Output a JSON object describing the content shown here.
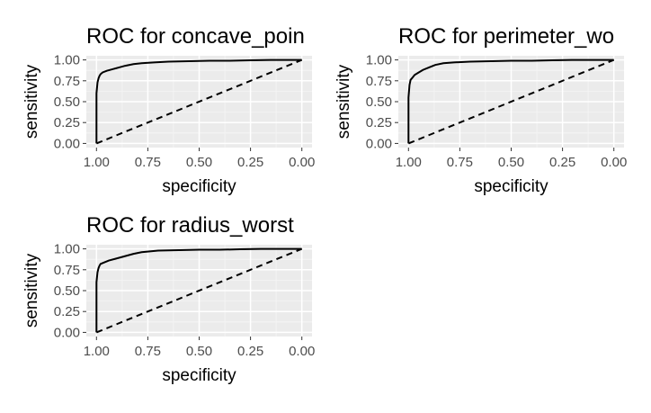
{
  "chart_data": [
    {
      "type": "line",
      "title": "ROC for concave_poin",
      "xlabel": "specificity",
      "ylabel": "sensitivity",
      "xlim": [
        1.0,
        0.0
      ],
      "x_reversed": true,
      "ylim": [
        0.0,
        1.0
      ],
      "x_ticks": [
        "1.00",
        "0.75",
        "0.50",
        "0.25",
        "0.00"
      ],
      "y_ticks": [
        "0.00",
        "0.25",
        "0.50",
        "0.75",
        "1.00"
      ],
      "grid": true,
      "legend": "none",
      "series": [
        {
          "style": "solid",
          "x": [
            1.0,
            1.0,
            0.995,
            0.99,
            0.985,
            0.98,
            0.97,
            0.95,
            0.92,
            0.89,
            0.86,
            0.82,
            0.78,
            0.72,
            0.65,
            0.55,
            0.45,
            0.35,
            0.25,
            0.15,
            0.05,
            0.0
          ],
          "y": [
            0.0,
            0.6,
            0.73,
            0.78,
            0.81,
            0.83,
            0.85,
            0.87,
            0.89,
            0.91,
            0.93,
            0.95,
            0.96,
            0.97,
            0.98,
            0.985,
            0.99,
            0.99,
            0.995,
            1.0,
            1.0,
            1.0
          ]
        },
        {
          "style": "dashed",
          "x": [
            1.0,
            0.0
          ],
          "y": [
            0.0,
            1.0
          ]
        }
      ]
    },
    {
      "type": "line",
      "title": "ROC for perimeter_wo",
      "xlabel": "specificity",
      "ylabel": "sensitivity",
      "xlim": [
        1.0,
        0.0
      ],
      "x_reversed": true,
      "ylim": [
        0.0,
        1.0
      ],
      "x_ticks": [
        "1.00",
        "0.75",
        "0.50",
        "0.25",
        "0.00"
      ],
      "y_ticks": [
        "0.00",
        "0.25",
        "0.50",
        "0.75",
        "1.00"
      ],
      "grid": true,
      "legend": "none",
      "series": [
        {
          "style": "solid",
          "x": [
            1.0,
            1.0,
            0.995,
            0.99,
            0.98,
            0.97,
            0.95,
            0.93,
            0.9,
            0.87,
            0.83,
            0.78,
            0.7,
            0.6,
            0.5,
            0.4,
            0.3,
            0.2,
            0.1,
            0.0
          ],
          "y": [
            0.0,
            0.55,
            0.7,
            0.76,
            0.79,
            0.82,
            0.85,
            0.88,
            0.91,
            0.94,
            0.96,
            0.97,
            0.98,
            0.985,
            0.99,
            0.99,
            0.995,
            1.0,
            1.0,
            1.0
          ]
        },
        {
          "style": "dashed",
          "x": [
            1.0,
            0.0
          ],
          "y": [
            0.0,
            1.0
          ]
        }
      ]
    },
    {
      "type": "line",
      "title": "ROC for radius_worst",
      "xlabel": "specificity",
      "ylabel": "sensitivity",
      "xlim": [
        1.0,
        0.0
      ],
      "x_reversed": true,
      "ylim": [
        0.0,
        1.0
      ],
      "x_ticks": [
        "1.00",
        "0.75",
        "0.50",
        "0.25",
        "0.00"
      ],
      "y_ticks": [
        "0.00",
        "0.25",
        "0.50",
        "0.75",
        "1.00"
      ],
      "grid": true,
      "legend": "none",
      "series": [
        {
          "style": "solid",
          "x": [
            1.0,
            1.0,
            0.995,
            0.99,
            0.985,
            0.98,
            0.96,
            0.94,
            0.91,
            0.88,
            0.85,
            0.82,
            0.78,
            0.74,
            0.7,
            0.6,
            0.5,
            0.4,
            0.3,
            0.2,
            0.1,
            0.0
          ],
          "y": [
            0.0,
            0.6,
            0.72,
            0.77,
            0.8,
            0.82,
            0.84,
            0.86,
            0.88,
            0.9,
            0.92,
            0.94,
            0.96,
            0.97,
            0.98,
            0.985,
            0.99,
            0.99,
            0.995,
            1.0,
            1.0,
            1.0
          ]
        },
        {
          "style": "dashed",
          "x": [
            1.0,
            0.0
          ],
          "y": [
            0.0,
            1.0
          ]
        }
      ]
    }
  ]
}
